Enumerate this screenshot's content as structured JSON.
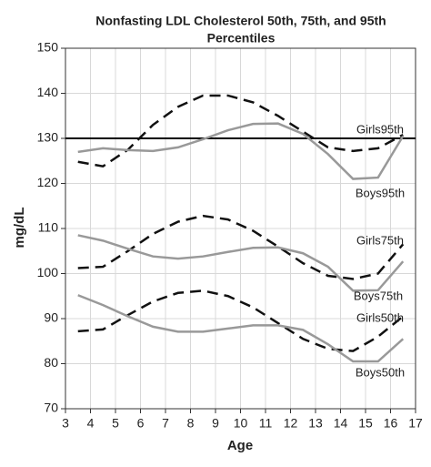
{
  "chart_data": {
    "type": "line",
    "title": [
      "Nonfasting LDL Cholesterol 50th, 75th, and 95th",
      "Percentiles"
    ],
    "x_label": "Age",
    "y_label": "mg/dL",
    "x": [
      3.5,
      4.5,
      5.5,
      6.5,
      7.5,
      8.5,
      9.5,
      10.5,
      11.5,
      12.5,
      13.5,
      14.5,
      15.5,
      16.5
    ],
    "series": [
      {
        "name": "Girls95th",
        "color": "#111111",
        "dashed": true,
        "values": [
          124.8,
          123.8,
          127.5,
          133,
          137,
          139.5,
          139.5,
          138,
          135,
          131.5,
          128,
          127.2,
          127.8,
          130.8
        ]
      },
      {
        "name": "Boys95th",
        "color": "#999999",
        "dashed": false,
        "values": [
          127,
          127.8,
          127.4,
          127.2,
          128,
          129.8,
          131.8,
          133.2,
          133.3,
          131,
          126.5,
          121,
          121.3,
          130.5
        ]
      },
      {
        "name": "Girls75th",
        "color": "#111111",
        "dashed": true,
        "values": [
          101.2,
          101.5,
          105,
          108.8,
          111.5,
          112.8,
          112,
          109.5,
          106,
          102.3,
          99.5,
          98.8,
          100,
          106.5
        ]
      },
      {
        "name": "Boys75th",
        "color": "#999999",
        "dashed": false,
        "values": [
          108.5,
          107.3,
          105.5,
          103.8,
          103.3,
          103.8,
          104.8,
          105.7,
          105.8,
          104.5,
          101.5,
          96.2,
          96.3,
          102.7
        ]
      },
      {
        "name": "Girls50th",
        "color": "#111111",
        "dashed": true,
        "values": [
          87.2,
          87.6,
          90.8,
          93.8,
          95.7,
          96.2,
          95,
          92.5,
          89,
          85.5,
          83.3,
          82.8,
          86,
          90.5
        ]
      },
      {
        "name": "Boys50th",
        "color": "#999999",
        "dashed": false,
        "values": [
          95.2,
          93,
          90.5,
          88.2,
          87.1,
          87.1,
          87.8,
          88.5,
          88.5,
          87.5,
          84.3,
          80.5,
          80.5,
          85.5
        ]
      }
    ],
    "reference_line": 130,
    "xlim": [
      3,
      17
    ],
    "xticks": [
      3,
      4,
      5,
      6,
      7,
      8,
      9,
      10,
      11,
      12,
      13,
      14,
      15,
      16,
      17
    ],
    "ylim": [
      70,
      150
    ],
    "yticks": [
      70,
      80,
      90,
      100,
      110,
      120,
      130,
      140,
      150
    ],
    "grid": true
  }
}
